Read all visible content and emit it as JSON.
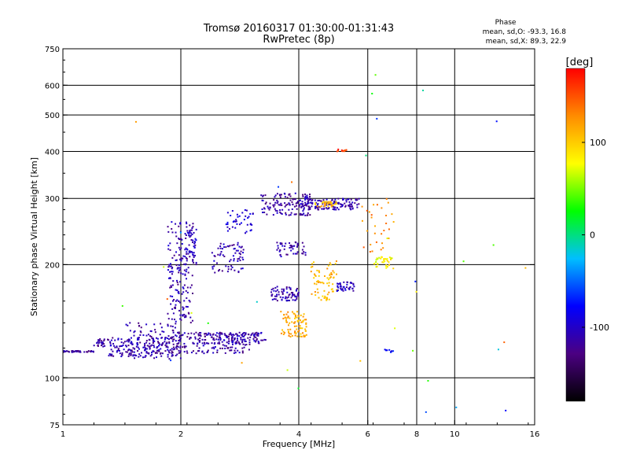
{
  "chart_data": {
    "type": "scatter",
    "title": "Tromsø 20160317 01:30:00-01:31:43",
    "subtitle": "RwPretec (8p)",
    "xlabel": "Frequency [MHz]",
    "ylabel": "Stationary phase Virtual Height [km]",
    "x_scale": "log2",
    "y_scale": "log",
    "xlim": [
      1,
      16
    ],
    "ylim": [
      75,
      750
    ],
    "x_ticks": [
      1,
      2,
      4,
      6,
      8,
      10,
      16
    ],
    "y_ticks": [
      75,
      100,
      200,
      300,
      400,
      500,
      600,
      750
    ],
    "grid": true,
    "phase_stats": {
      "heading": "Phase",
      "line_o": "mean, sd,O: -93.3, 16.8",
      "line_x": "mean, sd,X:  89.3, 22.9"
    },
    "colorbar": {
      "label": "[deg]",
      "ticks": [
        100,
        0,
        -100
      ],
      "vmin": -180,
      "vmax": 180,
      "colors": [
        "#000000",
        "#4b0082",
        "#0000ff",
        "#00bfff",
        "#00ff00",
        "#ffff00",
        "#ff8c00",
        "#ff0000"
      ]
    },
    "series": [
      {
        "x": 1.0,
        "x2": 1.2,
        "y": 117,
        "y2": 118,
        "n": 40,
        "phase": -120
      },
      {
        "x": 1.2,
        "x2": 1.28,
        "y": 121,
        "y2": 127,
        "n": 25,
        "phase": -115
      },
      {
        "x": 1.3,
        "x2": 1.9,
        "y": 114,
        "y2": 128,
        "n": 150,
        "phase": -110
      },
      {
        "x": 1.45,
        "x2": 2.0,
        "y": 112,
        "y2": 140,
        "n": 120,
        "phase": -115
      },
      {
        "x": 1.9,
        "x2": 3.0,
        "y": 116,
        "y2": 132,
        "n": 160,
        "phase": -115
      },
      {
        "x": 2.2,
        "x2": 3.3,
        "y": 123,
        "y2": 132,
        "n": 120,
        "phase": -110
      },
      {
        "x": 1.85,
        "x2": 2.15,
        "y": 140,
        "y2": 260,
        "n": 170,
        "phase": -110
      },
      {
        "x": 2.05,
        "x2": 2.2,
        "y": 200,
        "y2": 250,
        "n": 50,
        "phase": -105
      },
      {
        "x": 2.4,
        "x2": 2.9,
        "y": 190,
        "y2": 230,
        "n": 70,
        "phase": -110
      },
      {
        "x": 2.6,
        "x2": 3.1,
        "y": 240,
        "y2": 280,
        "n": 40,
        "phase": -100
      },
      {
        "x": 3.2,
        "x2": 4.3,
        "y": 270,
        "y2": 310,
        "n": 130,
        "phase": -115
      },
      {
        "x": 3.4,
        "x2": 4.0,
        "y": 160,
        "y2": 175,
        "n": 70,
        "phase": -110
      },
      {
        "x": 3.5,
        "x2": 4.2,
        "y": 210,
        "y2": 230,
        "n": 50,
        "phase": -110
      },
      {
        "x": 4.0,
        "x2": 5.7,
        "y": 280,
        "y2": 300,
        "n": 140,
        "phase": -110
      },
      {
        "x": 4.4,
        "x2": 5.0,
        "y": 285,
        "y2": 295,
        "n": 35,
        "phase": 110
      },
      {
        "x": 3.6,
        "x2": 4.2,
        "y": 128,
        "y2": 150,
        "n": 90,
        "phase": 115
      },
      {
        "x": 4.3,
        "x2": 5.0,
        "y": 160,
        "y2": 205,
        "n": 70,
        "phase": 110
      },
      {
        "x": 5.0,
        "x2": 5.6,
        "y": 170,
        "y2": 180,
        "n": 40,
        "phase": -105
      },
      {
        "x": 6.2,
        "x2": 7.0,
        "y": 195,
        "y2": 210,
        "n": 35,
        "phase": 80
      },
      {
        "x": 5.8,
        "x2": 7.0,
        "y": 215,
        "y2": 300,
        "n": 30,
        "phase": 130
      },
      {
        "x": 5.0,
        "x2": 5.3,
        "y": 400,
        "y2": 405,
        "n": 12,
        "phase": 160
      },
      {
        "x": 6.6,
        "x2": 7.0,
        "y": 116,
        "y2": 119,
        "n": 10,
        "phase": -80
      },
      {
        "x": 1.4,
        "x2": 16.0,
        "y": 80,
        "y2": 650,
        "n": 35,
        "phase": 0
      }
    ]
  }
}
